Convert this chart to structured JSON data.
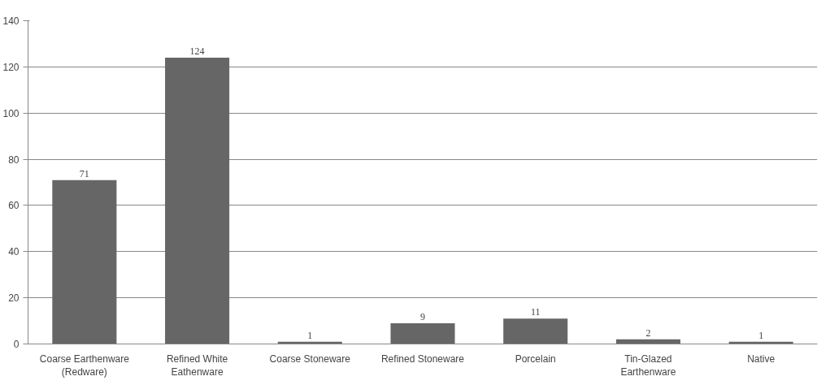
{
  "chart_data": {
    "type": "bar",
    "categories": [
      "Coarse Earthenware\n(Redware)",
      "Refined White\nEathenware",
      "Coarse Stoneware",
      "Refined Stoneware",
      "Porcelain",
      "Tin-Glazed\nEarthenware",
      "Native"
    ],
    "values": [
      71,
      124,
      1,
      9,
      11,
      2,
      1
    ],
    "color": "#666666",
    "ylim": [
      0,
      140
    ],
    "yticks": [
      0,
      20,
      40,
      60,
      80,
      100,
      120,
      140
    ],
    "grid": "y",
    "data_labels": true
  }
}
